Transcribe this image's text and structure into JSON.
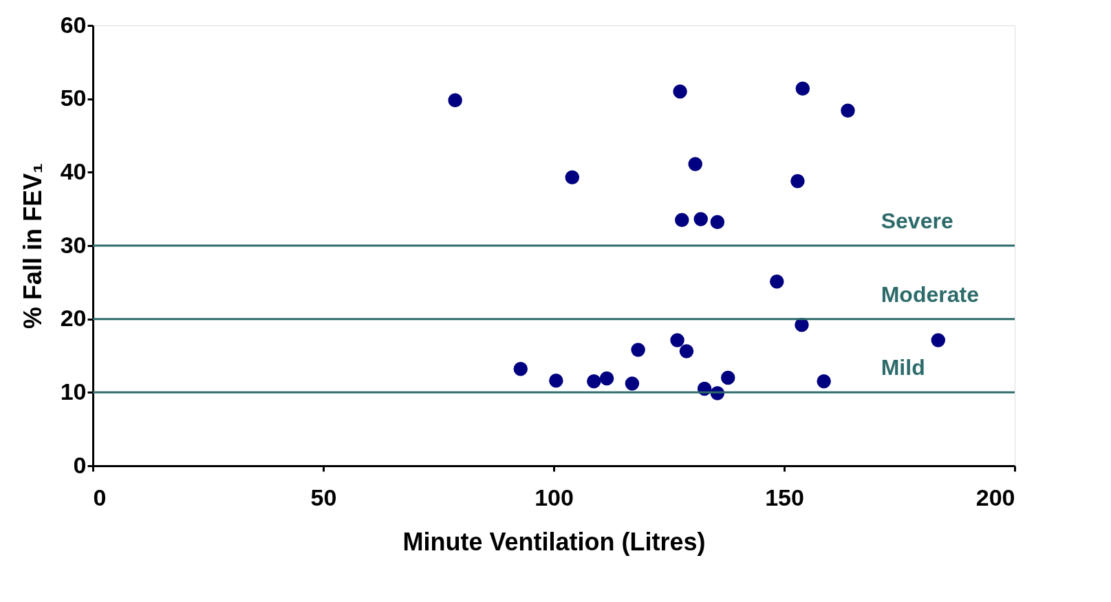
{
  "chart_data": {
    "type": "scatter",
    "xlabel": "Minute Ventilation (Litres)",
    "ylabel": "% Fall in FEV₁",
    "x": [
      78.6,
      127.4,
      154.0,
      163.8,
      130.7,
      104.0,
      152.9,
      127.8,
      131.9,
      135.5,
      148.4,
      153.8,
      183.4,
      92.8,
      100.5,
      108.7,
      111.5,
      117.0,
      118.3,
      126.8,
      128.8,
      132.7,
      135.5,
      137.8,
      158.6
    ],
    "series": [
      {
        "color": "#000080",
        "values": [
          49.8,
          51.0,
          51.4,
          48.4,
          41.1,
          39.3,
          38.8,
          33.5,
          33.6,
          33.2,
          25.1,
          19.2,
          17.1,
          13.2,
          11.6,
          11.5,
          11.9,
          11.2,
          15.8,
          17.1,
          15.6,
          10.5,
          9.9,
          12.0,
          11.5
        ]
      }
    ],
    "xlim": [
      0,
      200
    ],
    "xticks": [
      0,
      50,
      100,
      150,
      200
    ],
    "ylim": [
      0,
      60
    ],
    "yticks": [
      0,
      10,
      20,
      30,
      40,
      50,
      60
    ],
    "ref_lines": [
      {
        "axis": "y",
        "value": 10,
        "label": "Mild",
        "color": "#2e6b6b"
      },
      {
        "axis": "y",
        "value": 20,
        "label": "Moderate",
        "color": "#2e6b6b"
      },
      {
        "axis": "y",
        "value": 30,
        "label": "Severe",
        "color": "#2e6b6b"
      }
    ],
    "grid": false
  }
}
